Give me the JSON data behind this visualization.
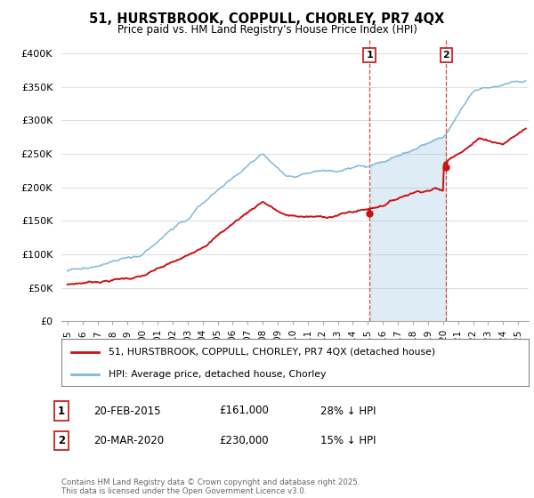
{
  "title": "51, HURSTBROOK, COPPULL, CHORLEY, PR7 4QX",
  "subtitle": "Price paid vs. HM Land Registry's House Price Index (HPI)",
  "ylim": [
    0,
    420000
  ],
  "yticks": [
    0,
    50000,
    100000,
    150000,
    200000,
    250000,
    300000,
    350000,
    400000
  ],
  "ytick_labels": [
    "£0",
    "£50K",
    "£100K",
    "£150K",
    "£200K",
    "£250K",
    "£300K",
    "£350K",
    "£400K"
  ],
  "hpi_color": "#7fb9db",
  "hpi_fill_color": "#c8e0f0",
  "price_color": "#cc1111",
  "sale1_date": 2015.12,
  "sale1_price": 161000,
  "sale2_date": 2020.22,
  "sale2_price": 230000,
  "legend_label1": "51, HURSTBROOK, COPPULL, CHORLEY, PR7 4QX (detached house)",
  "legend_label2": "HPI: Average price, detached house, Chorley",
  "note1_date": "20-FEB-2015",
  "note1_price": "£161,000",
  "note1_hpi": "28% ↓ HPI",
  "note2_date": "20-MAR-2020",
  "note2_price": "£230,000",
  "note2_hpi": "15% ↓ HPI",
  "copyright": "Contains HM Land Registry data © Crown copyright and database right 2025.\nThis data is licensed under the Open Government Licence v3.0.",
  "background_color": "#ffffff",
  "grid_color": "#dddddd",
  "xlim_start": 1994.6,
  "xlim_end": 2025.7
}
